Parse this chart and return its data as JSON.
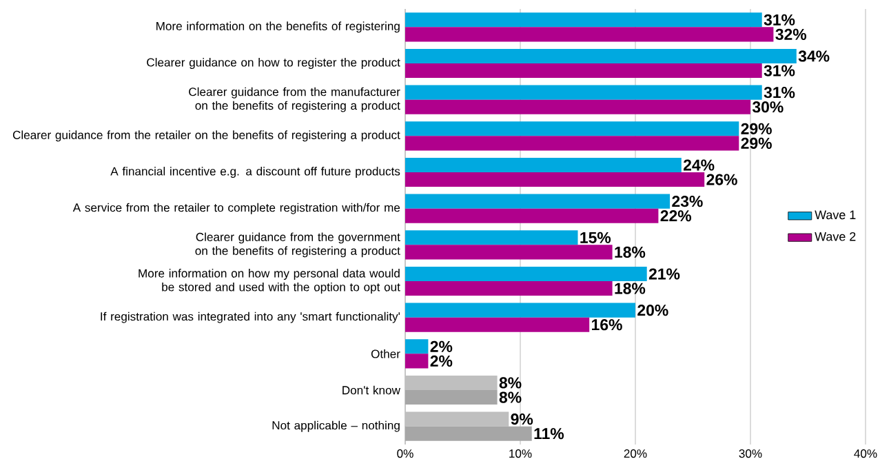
{
  "chart_data": {
    "type": "bar",
    "orientation": "horizontal",
    "categories": [
      "More information on the benefits of registering",
      "Clearer guidance on how to register the product",
      "Clearer guidance from the manufacturer on the benefits of registering a product",
      "Clearer guidance from the retailer on the benefits of registering a product",
      "A financial incentive e.g. a discount off future products",
      "A service from the retailer to complete registration with/for me",
      "Clearer guidance from the government on the benefits of registering a product",
      "More information on how my personal data would be stored and used with the option to opt out",
      "If registration was integrated into any 'smart functionality'",
      "Other",
      "Don't know",
      "Not applicable – nothing"
    ],
    "series": [
      {
        "name": "Wave 1",
        "color": "#00a9e0",
        "colors": [
          "#00a9e0",
          "#00a9e0",
          "#00a9e0",
          "#00a9e0",
          "#00a9e0",
          "#00a9e0",
          "#00a9e0",
          "#00a9e0",
          "#00a9e0",
          "#00a9e0",
          "#bfbfbf",
          "#bfbfbf"
        ],
        "values": [
          31,
          34,
          31,
          29,
          24,
          23,
          15,
          21,
          20,
          2,
          8,
          9
        ],
        "value_labels": [
          "31%",
          "34%",
          "31%",
          "29%",
          "24%",
          "23%",
          "15%",
          "21%",
          "20%",
          "2%",
          "8%",
          "9%"
        ]
      },
      {
        "name": "Wave 2",
        "color": "#b0008c",
        "colors": [
          "#b0008c",
          "#b0008c",
          "#b0008c",
          "#b0008c",
          "#b0008c",
          "#b0008c",
          "#b0008c",
          "#b0008c",
          "#b0008c",
          "#b0008c",
          "#a6a6a6",
          "#a6a6a6"
        ],
        "values": [
          32,
          31,
          30,
          29,
          26,
          22,
          18,
          18,
          16,
          2,
          8,
          11
        ],
        "value_labels": [
          "32%",
          "31%",
          "30%",
          "29%",
          "26%",
          "22%",
          "18%",
          "18%",
          "16%",
          "2%",
          "8%",
          "11%"
        ]
      }
    ],
    "xlim": [
      0,
      40
    ],
    "xticks": [
      {
        "value": 0,
        "label": "0%"
      },
      {
        "value": 10,
        "label": "10%"
      },
      {
        "value": 20,
        "label": "20%"
      },
      {
        "value": 30,
        "label": "30%"
      },
      {
        "value": 40,
        "label": "40%"
      }
    ],
    "grid": "x",
    "legend": "right"
  }
}
